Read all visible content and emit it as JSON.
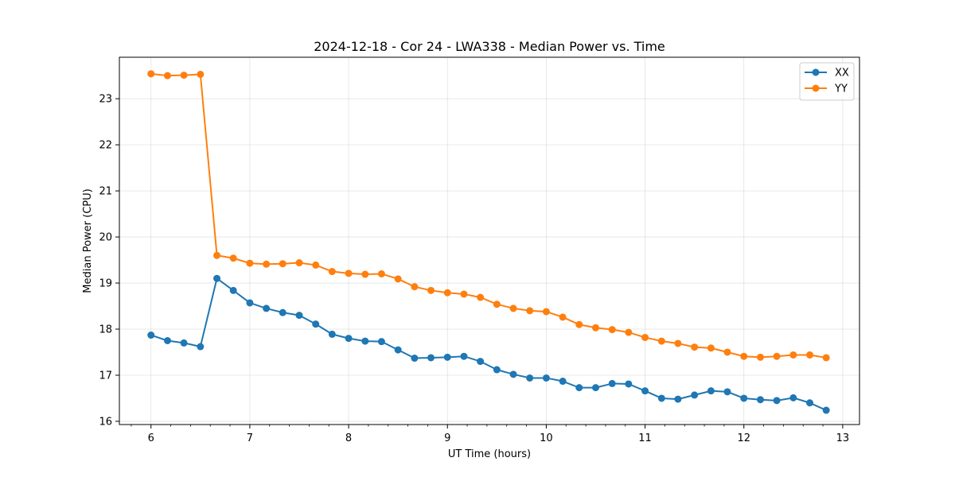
{
  "chart_data": {
    "type": "line",
    "title": "2024-12-18 - Cor 24 - LWA338 - Median Power vs. Time",
    "xlabel": "UT Time (hours)",
    "ylabel": "Median Power (CPU)",
    "xlim": [
      5.68,
      13.17
    ],
    "ylim": [
      15.93,
      23.9
    ],
    "xticks": [
      6,
      7,
      8,
      9,
      10,
      11,
      12,
      13
    ],
    "yticks": [
      16,
      17,
      18,
      19,
      20,
      21,
      22,
      23
    ],
    "grid": true,
    "legend_position": "top-right",
    "x": [
      6.0,
      6.167,
      6.333,
      6.5,
      6.667,
      6.833,
      7.0,
      7.167,
      7.333,
      7.5,
      7.667,
      7.833,
      8.0,
      8.167,
      8.333,
      8.5,
      8.667,
      8.833,
      9.0,
      9.167,
      9.333,
      9.5,
      9.667,
      9.833,
      10.0,
      10.167,
      10.333,
      10.5,
      10.667,
      10.833,
      11.0,
      11.167,
      11.333,
      11.5,
      11.667,
      11.833,
      12.0,
      12.167,
      12.333,
      12.5,
      12.667,
      12.833
    ],
    "series": [
      {
        "name": "XX",
        "color": "#1f77b4",
        "values": [
          17.87,
          17.75,
          17.7,
          17.62,
          19.1,
          18.84,
          18.57,
          18.45,
          18.36,
          18.3,
          18.11,
          17.89,
          17.8,
          17.74,
          17.73,
          17.55,
          17.37,
          17.38,
          17.39,
          17.41,
          17.3,
          17.12,
          17.02,
          16.94,
          16.94,
          16.87,
          16.73,
          16.73,
          16.82,
          16.81,
          16.66,
          16.5,
          16.48,
          16.57,
          16.66,
          16.64,
          16.5,
          16.47,
          16.45,
          16.51,
          16.4,
          16.24
        ]
      },
      {
        "name": "YY",
        "color": "#ff7f0e",
        "values": [
          23.54,
          23.5,
          23.51,
          23.53,
          19.6,
          19.54,
          19.43,
          19.41,
          19.42,
          19.44,
          19.39,
          19.25,
          19.21,
          19.19,
          19.2,
          19.09,
          18.92,
          18.84,
          18.79,
          18.76,
          18.69,
          18.54,
          18.45,
          18.4,
          18.38,
          18.26,
          18.1,
          18.03,
          17.99,
          17.93,
          17.82,
          17.74,
          17.69,
          17.61,
          17.59,
          17.5,
          17.41,
          17.39,
          17.41,
          17.44,
          17.44,
          17.38
        ]
      }
    ]
  }
}
